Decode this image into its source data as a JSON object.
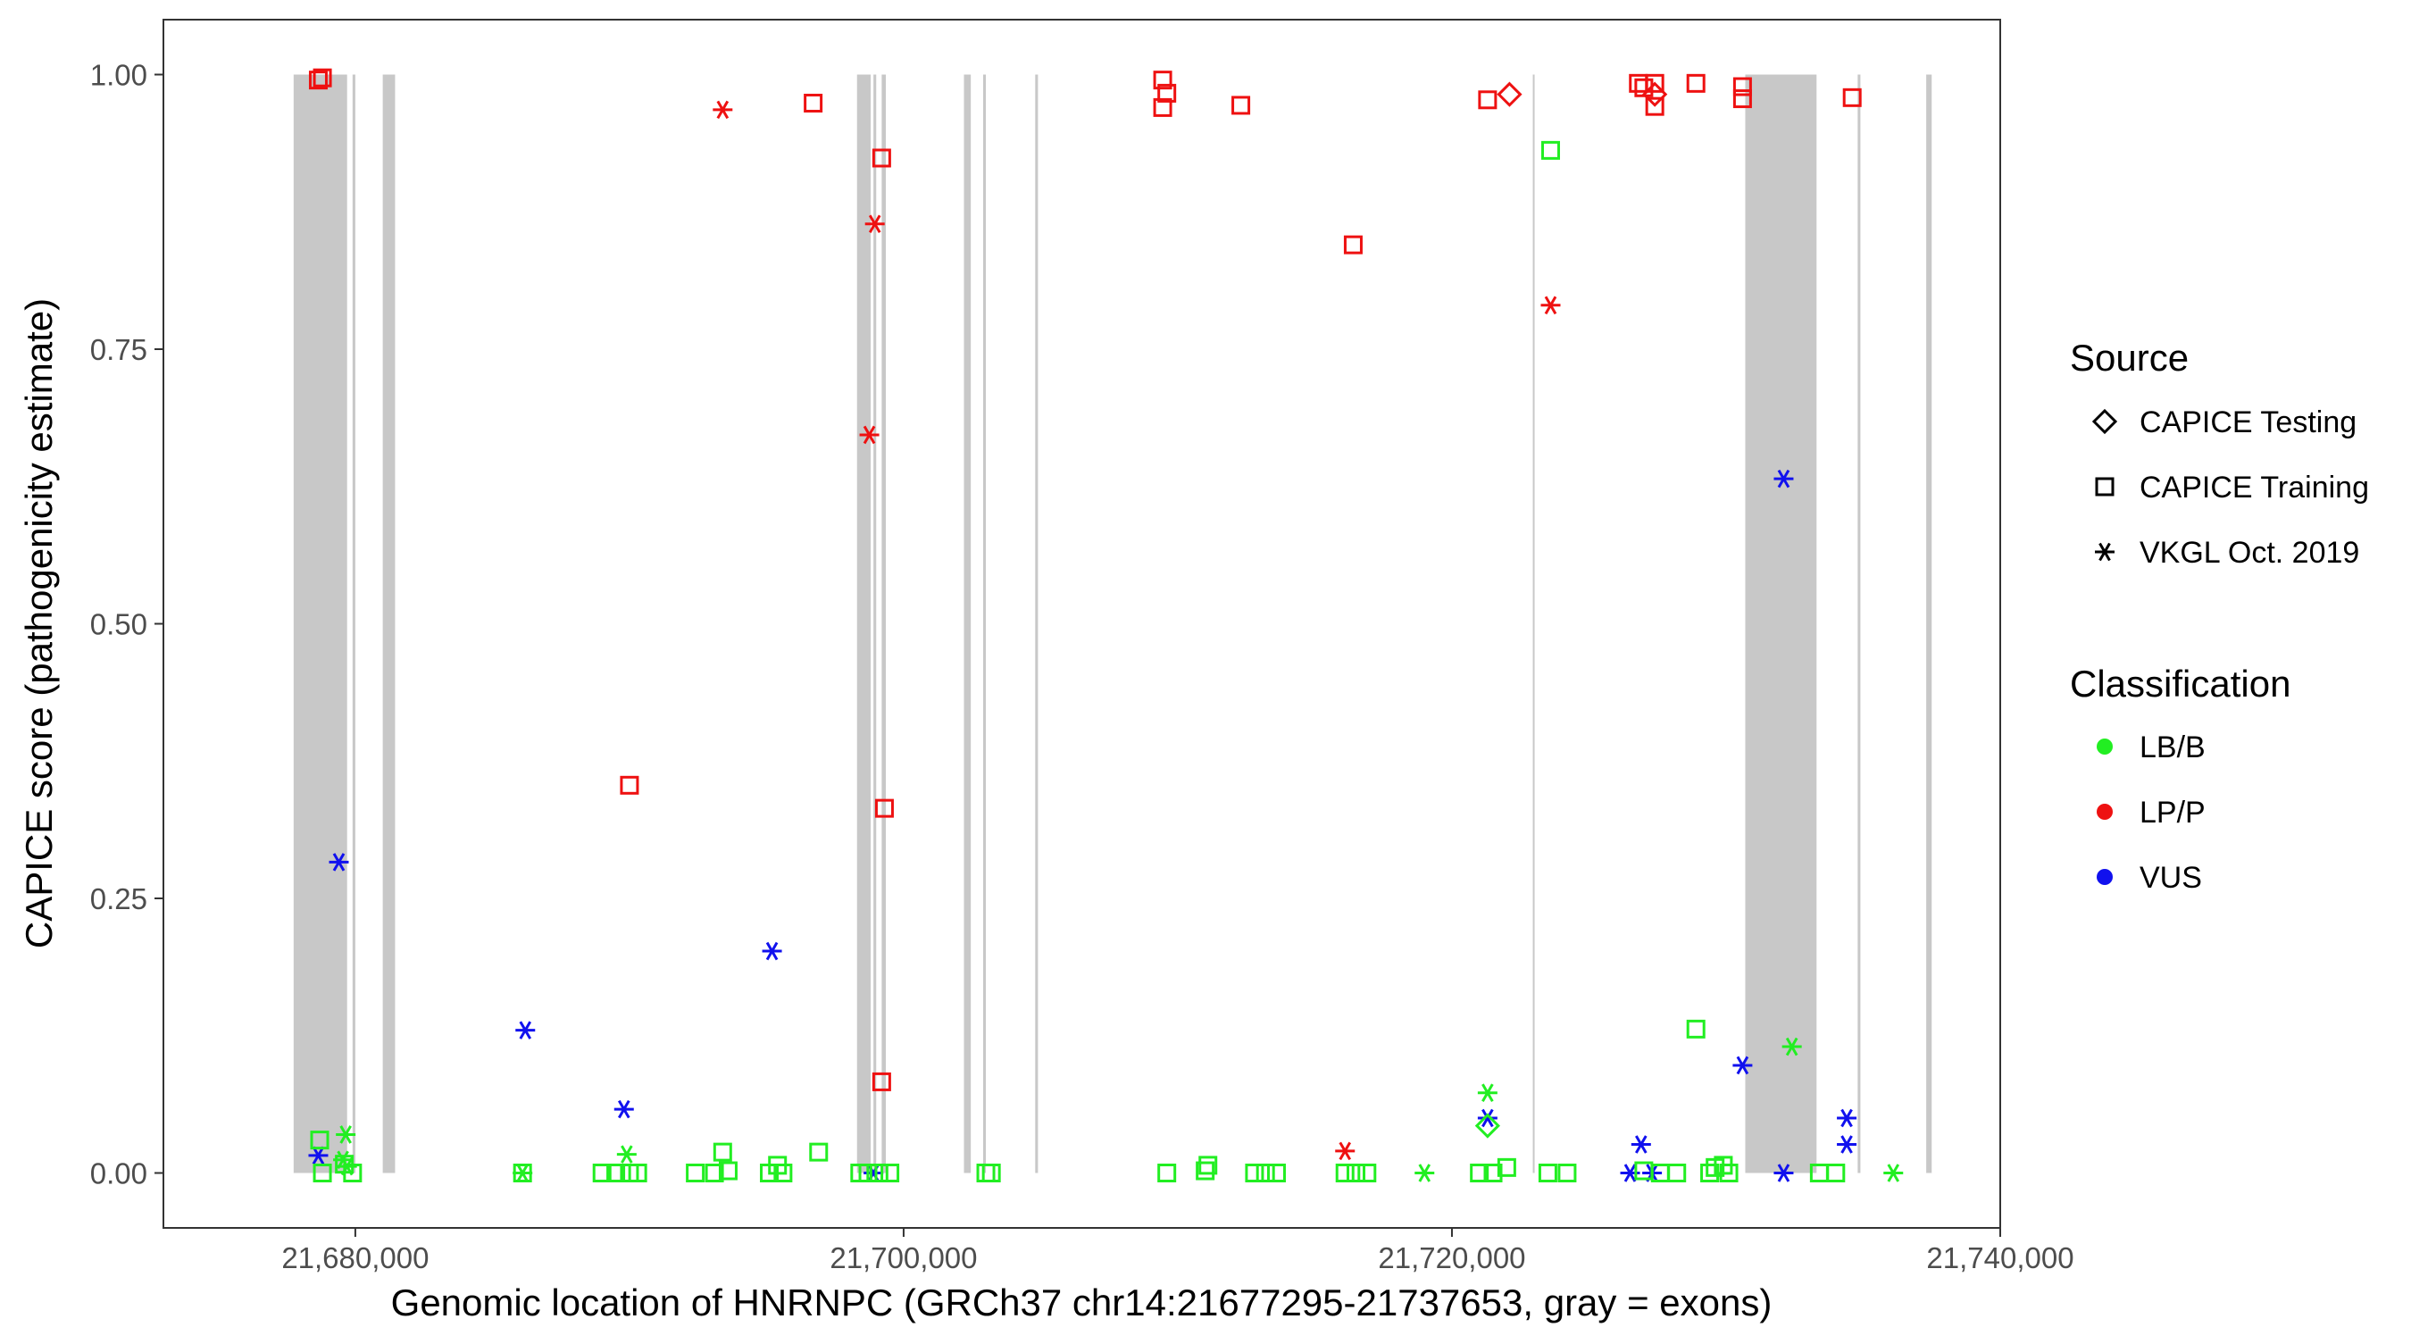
{
  "chart_data": {
    "type": "scatter",
    "xlabel": "Genomic location of HNRNPC (GRCh37 chr14:21677295-21737653, gray = exons)",
    "ylabel": "CAPICE score (pathogenicity estimate)",
    "xlim": [
      21673000,
      21740000
    ],
    "ylim": [
      -0.05,
      1.05
    ],
    "x_ticks": [
      21680000,
      21700000,
      21720000,
      21740000
    ],
    "x_tick_labels": [
      "21,680,000",
      "21,700,000",
      "21,720,000",
      "21,740,000"
    ],
    "y_ticks": [
      0,
      0.25,
      0.5,
      0.75,
      1.0
    ],
    "y_tick_labels": [
      "0.00",
      "0.25",
      "0.50",
      "0.75",
      "1.00"
    ],
    "grid": false,
    "legend_placement": "right",
    "exons": [
      [
        21677750,
        21679700
      ],
      [
        21679900,
        21680000
      ],
      [
        21681000,
        21681450
      ],
      [
        21698300,
        21698800
      ],
      [
        21698900,
        21699000
      ],
      [
        21699200,
        21699350
      ],
      [
        21702200,
        21702450
      ],
      [
        21702900,
        21703000
      ],
      [
        21704800,
        21704900
      ],
      [
        21722950,
        21723000
      ],
      [
        21730700,
        21733300
      ],
      [
        21734800,
        21734900
      ],
      [
        21737300,
        21737500
      ]
    ],
    "legends": {
      "source": {
        "title": "Source",
        "items": [
          {
            "label": "CAPICE Testing",
            "shape": "diamond"
          },
          {
            "label": "CAPICE Training",
            "shape": "square"
          },
          {
            "label": "VKGL Oct. 2019",
            "shape": "asterisk"
          }
        ]
      },
      "classification": {
        "title": "Classification",
        "items": [
          {
            "label": "LB/B",
            "color": "#22ee22"
          },
          {
            "label": "LP/P",
            "color": "#ee1111"
          },
          {
            "label": "VUS",
            "color": "#1111ee"
          }
        ]
      }
    },
    "colors": {
      "LB/B": "#22ee22",
      "LP/P": "#ee1111",
      "VUS": "#1111ee"
    },
    "series": [
      {
        "name": "CAPICE Training",
        "class": "LP/P",
        "shape": "square",
        "points": [
          [
            21678650,
            0.995
          ],
          [
            21678800,
            0.997
          ],
          [
            21690000,
            0.353
          ],
          [
            21696700,
            0.974
          ],
          [
            21699200,
            0.924
          ],
          [
            21699300,
            0.332
          ],
          [
            21699200,
            0.083
          ],
          [
            21709450,
            0.995
          ],
          [
            21709450,
            0.97
          ],
          [
            21709600,
            0.983
          ],
          [
            21712300,
            0.972
          ],
          [
            21716400,
            0.845
          ],
          [
            21721300,
            0.977
          ],
          [
            21726800,
            0.992
          ],
          [
            21727400,
            0.992
          ],
          [
            21727400,
            0.971
          ],
          [
            21727000,
            0.988
          ],
          [
            21728900,
            0.992
          ],
          [
            21730600,
            0.989
          ],
          [
            21730600,
            0.978
          ],
          [
            21734600,
            0.979
          ]
        ]
      },
      {
        "name": "CAPICE Testing",
        "class": "LP/P",
        "shape": "diamond",
        "points": [
          [
            21722100,
            0.982
          ],
          [
            21727400,
            0.982
          ]
        ]
      },
      {
        "name": "VKGL Oct. 2019",
        "class": "LP/P",
        "shape": "asterisk",
        "points": [
          [
            21693400,
            0.968
          ],
          [
            21698950,
            0.864
          ],
          [
            21698750,
            0.672
          ],
          [
            21723600,
            0.79
          ],
          [
            21716100,
            0.02
          ]
        ]
      },
      {
        "name": "VKGL Oct. 2019",
        "class": "VUS",
        "shape": "asterisk",
        "points": [
          [
            21678650,
            0.016
          ],
          [
            21679400,
            0.283
          ],
          [
            21686200,
            0.13
          ],
          [
            21689800,
            0.058
          ],
          [
            21695200,
            0.202
          ],
          [
            21698900,
            0.0
          ],
          [
            21721300,
            0.05
          ],
          [
            21726500,
            0.0
          ],
          [
            21726900,
            0.026
          ],
          [
            21727300,
            0.0
          ],
          [
            21730600,
            0.098
          ],
          [
            21732100,
            0.632
          ],
          [
            21732100,
            0.0
          ],
          [
            21734400,
            0.05
          ],
          [
            21734400,
            0.026
          ]
        ]
      },
      {
        "name": "VKGL Oct. 2019",
        "class": "LB/B",
        "shape": "asterisk",
        "points": [
          [
            21679650,
            0.035
          ],
          [
            21679550,
            0.012
          ],
          [
            21679700,
            0.006
          ],
          [
            21686100,
            0.0
          ],
          [
            21689900,
            0.017
          ],
          [
            21719000,
            0.0
          ],
          [
            21721300,
            0.073
          ],
          [
            21732400,
            0.115
          ],
          [
            21736100,
            0.0
          ]
        ]
      },
      {
        "name": "CAPICE Testing",
        "class": "LB/B",
        "shape": "diamond",
        "points": [
          [
            21721300,
            0.043
          ]
        ]
      },
      {
        "name": "CAPICE Training",
        "class": "LB/B",
        "shape": "square",
        "points": [
          [
            21678700,
            0.03
          ],
          [
            21678800,
            0.0
          ],
          [
            21679600,
            0.008
          ],
          [
            21679900,
            0.0
          ],
          [
            21686100,
            0.0
          ],
          [
            21689000,
            0.0
          ],
          [
            21689500,
            0.0
          ],
          [
            21690000,
            0.0
          ],
          [
            21690300,
            0.0
          ],
          [
            21692400,
            0.0
          ],
          [
            21693100,
            0.0
          ],
          [
            21693400,
            0.019
          ],
          [
            21693600,
            0.002
          ],
          [
            21695100,
            0.0
          ],
          [
            21695400,
            0.007
          ],
          [
            21695600,
            0.0
          ],
          [
            21696900,
            0.019
          ],
          [
            21698400,
            0.0
          ],
          [
            21698700,
            0.0
          ],
          [
            21699100,
            0.0
          ],
          [
            21699500,
            0.0
          ],
          [
            21703000,
            0.0
          ],
          [
            21703200,
            0.0
          ],
          [
            21709600,
            0.0
          ],
          [
            21711000,
            0.002
          ],
          [
            21711100,
            0.007
          ],
          [
            21712800,
            0.0
          ],
          [
            21713200,
            0.0
          ],
          [
            21713600,
            0.0
          ],
          [
            21716100,
            0.0
          ],
          [
            21716500,
            0.0
          ],
          [
            21716900,
            0.0
          ],
          [
            21721000,
            0.0
          ],
          [
            21721500,
            0.0
          ],
          [
            21722000,
            0.005
          ],
          [
            21723500,
            0.0
          ],
          [
            21724200,
            0.0
          ],
          [
            21723600,
            0.931
          ],
          [
            21727000,
            0.002
          ],
          [
            21727600,
            0.0
          ],
          [
            21728200,
            0.0
          ],
          [
            21728900,
            0.131
          ],
          [
            21729400,
            0.0
          ],
          [
            21729600,
            0.005
          ],
          [
            21729900,
            0.007
          ],
          [
            21730100,
            0.0
          ],
          [
            21733400,
            0.0
          ],
          [
            21734000,
            0.0
          ]
        ]
      }
    ]
  }
}
